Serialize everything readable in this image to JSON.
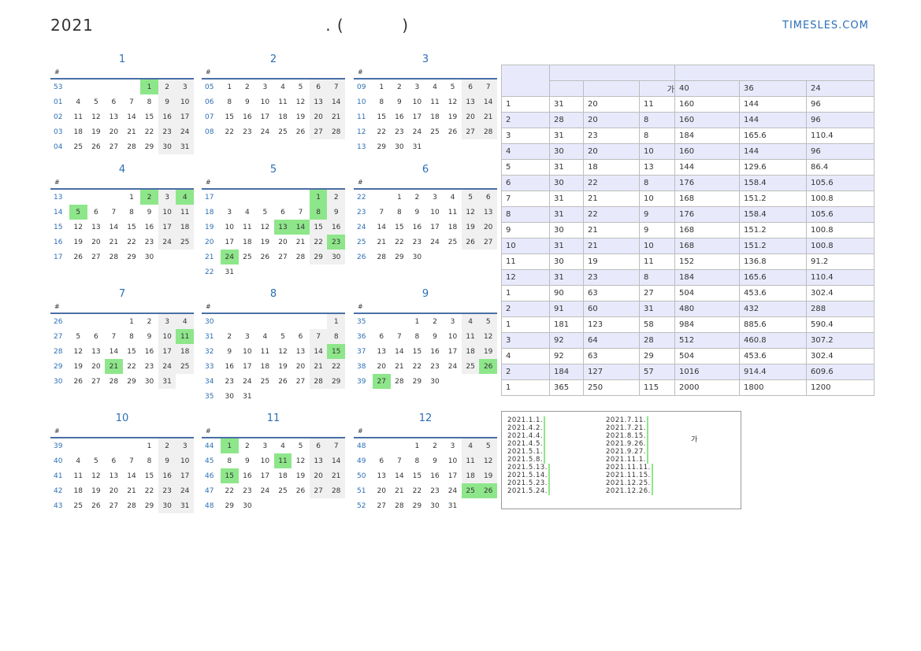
{
  "header": {
    "title": "2021                                        . (          )",
    "site": "TIMESLES.COM"
  },
  "months": [
    {
      "name": "1",
      "hash": "#",
      "rows": [
        {
          "wk": "53",
          "days": [
            "",
            "",
            "",
            "",
            "1",
            "2",
            "3"
          ],
          "hol": [
            4
          ]
        },
        {
          "wk": "01",
          "days": [
            "4",
            "5",
            "6",
            "7",
            "8",
            "9",
            "10"
          ],
          "hol": []
        },
        {
          "wk": "02",
          "days": [
            "11",
            "12",
            "13",
            "14",
            "15",
            "16",
            "17"
          ],
          "hol": []
        },
        {
          "wk": "03",
          "days": [
            "18",
            "19",
            "20",
            "21",
            "22",
            "23",
            "24"
          ],
          "hol": []
        },
        {
          "wk": "04",
          "days": [
            "25",
            "26",
            "27",
            "28",
            "29",
            "30",
            "31"
          ],
          "hol": []
        }
      ]
    },
    {
      "name": "2",
      "hash": "#",
      "rows": [
        {
          "wk": "05",
          "days": [
            "1",
            "2",
            "3",
            "4",
            "5",
            "6",
            "7"
          ],
          "hol": []
        },
        {
          "wk": "06",
          "days": [
            "8",
            "9",
            "10",
            "11",
            "12",
            "13",
            "14"
          ],
          "hol": []
        },
        {
          "wk": "07",
          "days": [
            "15",
            "16",
            "17",
            "18",
            "19",
            "20",
            "21"
          ],
          "hol": []
        },
        {
          "wk": "08",
          "days": [
            "22",
            "23",
            "24",
            "25",
            "26",
            "27",
            "28"
          ],
          "hol": []
        }
      ]
    },
    {
      "name": "3",
      "hash": "#",
      "rows": [
        {
          "wk": "09",
          "days": [
            "1",
            "2",
            "3",
            "4",
            "5",
            "6",
            "7"
          ],
          "hol": []
        },
        {
          "wk": "10",
          "days": [
            "8",
            "9",
            "10",
            "11",
            "12",
            "13",
            "14"
          ],
          "hol": []
        },
        {
          "wk": "11",
          "days": [
            "15",
            "16",
            "17",
            "18",
            "19",
            "20",
            "21"
          ],
          "hol": []
        },
        {
          "wk": "12",
          "days": [
            "22",
            "23",
            "24",
            "25",
            "26",
            "27",
            "28"
          ],
          "hol": []
        },
        {
          "wk": "13",
          "days": [
            "29",
            "30",
            "31",
            "",
            "",
            "",
            ""
          ],
          "hol": []
        }
      ]
    },
    {
      "name": "4",
      "hash": "#",
      "rows": [
        {
          "wk": "13",
          "days": [
            "",
            "",
            "",
            "1",
            "2",
            "3",
            "4"
          ],
          "hol": [
            4,
            6
          ]
        },
        {
          "wk": "14",
          "days": [
            "5",
            "6",
            "7",
            "8",
            "9",
            "10",
            "11"
          ],
          "hol": [
            0
          ]
        },
        {
          "wk": "15",
          "days": [
            "12",
            "13",
            "14",
            "15",
            "16",
            "17",
            "18"
          ],
          "hol": []
        },
        {
          "wk": "16",
          "days": [
            "19",
            "20",
            "21",
            "22",
            "23",
            "24",
            "25"
          ],
          "hol": []
        },
        {
          "wk": "17",
          "days": [
            "26",
            "27",
            "28",
            "29",
            "30",
            "",
            ""
          ],
          "hol": []
        }
      ]
    },
    {
      "name": "5",
      "hash": "#",
      "rows": [
        {
          "wk": "17",
          "days": [
            "",
            "",
            "",
            "",
            "",
            "1",
            "2"
          ],
          "hol": [
            5
          ]
        },
        {
          "wk": "18",
          "days": [
            "3",
            "4",
            "5",
            "6",
            "7",
            "8",
            "9"
          ],
          "hol": [
            5
          ]
        },
        {
          "wk": "19",
          "days": [
            "10",
            "11",
            "12",
            "13",
            "14",
            "15",
            "16"
          ],
          "hol": [
            3,
            4
          ]
        },
        {
          "wk": "20",
          "days": [
            "17",
            "18",
            "19",
            "20",
            "21",
            "22",
            "23"
          ],
          "hol": [
            6
          ]
        },
        {
          "wk": "21",
          "days": [
            "24",
            "25",
            "26",
            "27",
            "28",
            "29",
            "30"
          ],
          "hol": [
            0
          ]
        },
        {
          "wk": "22",
          "days": [
            "31",
            "",
            "",
            "",
            "",
            "",
            ""
          ],
          "hol": []
        }
      ]
    },
    {
      "name": "6",
      "hash": "#",
      "rows": [
        {
          "wk": "22",
          "days": [
            "",
            "1",
            "2",
            "3",
            "4",
            "5",
            "6"
          ],
          "hol": []
        },
        {
          "wk": "23",
          "days": [
            "7",
            "8",
            "9",
            "10",
            "11",
            "12",
            "13"
          ],
          "hol": []
        },
        {
          "wk": "24",
          "days": [
            "14",
            "15",
            "16",
            "17",
            "18",
            "19",
            "20"
          ],
          "hol": []
        },
        {
          "wk": "25",
          "days": [
            "21",
            "22",
            "23",
            "24",
            "25",
            "26",
            "27"
          ],
          "hol": []
        },
        {
          "wk": "26",
          "days": [
            "28",
            "29",
            "30",
            "",
            "",
            "",
            ""
          ],
          "hol": []
        }
      ]
    },
    {
      "name": "7",
      "hash": "#",
      "rows": [
        {
          "wk": "26",
          "days": [
            "",
            "",
            "",
            "1",
            "2",
            "3",
            "4"
          ],
          "hol": []
        },
        {
          "wk": "27",
          "days": [
            "5",
            "6",
            "7",
            "8",
            "9",
            "10",
            "11"
          ],
          "hol": [
            6
          ]
        },
        {
          "wk": "28",
          "days": [
            "12",
            "13",
            "14",
            "15",
            "16",
            "17",
            "18"
          ],
          "hol": []
        },
        {
          "wk": "29",
          "days": [
            "19",
            "20",
            "21",
            "22",
            "23",
            "24",
            "25"
          ],
          "hol": [
            2
          ]
        },
        {
          "wk": "30",
          "days": [
            "26",
            "27",
            "28",
            "29",
            "30",
            "31",
            ""
          ],
          "hol": []
        }
      ]
    },
    {
      "name": "8",
      "hash": "#",
      "rows": [
        {
          "wk": "30",
          "days": [
            "",
            "",
            "",
            "",
            "",
            "",
            "1"
          ],
          "hol": []
        },
        {
          "wk": "31",
          "days": [
            "2",
            "3",
            "4",
            "5",
            "6",
            "7",
            "8"
          ],
          "hol": []
        },
        {
          "wk": "32",
          "days": [
            "9",
            "10",
            "11",
            "12",
            "13",
            "14",
            "15"
          ],
          "hol": [
            6
          ]
        },
        {
          "wk": "33",
          "days": [
            "16",
            "17",
            "18",
            "19",
            "20",
            "21",
            "22"
          ],
          "hol": []
        },
        {
          "wk": "34",
          "days": [
            "23",
            "24",
            "25",
            "26",
            "27",
            "28",
            "29"
          ],
          "hol": []
        },
        {
          "wk": "35",
          "days": [
            "30",
            "31",
            "",
            "",
            "",
            "",
            ""
          ],
          "hol": []
        }
      ]
    },
    {
      "name": "9",
      "hash": "#",
      "rows": [
        {
          "wk": "35",
          "days": [
            "",
            "",
            "1",
            "2",
            "3",
            "4",
            "5"
          ],
          "hol": []
        },
        {
          "wk": "36",
          "days": [
            "6",
            "7",
            "8",
            "9",
            "10",
            "11",
            "12"
          ],
          "hol": []
        },
        {
          "wk": "37",
          "days": [
            "13",
            "14",
            "15",
            "16",
            "17",
            "18",
            "19"
          ],
          "hol": []
        },
        {
          "wk": "38",
          "days": [
            "20",
            "21",
            "22",
            "23",
            "24",
            "25",
            "26"
          ],
          "hol": [
            6
          ]
        },
        {
          "wk": "39",
          "days": [
            "27",
            "28",
            "29",
            "30",
            "",
            "",
            ""
          ],
          "hol": [
            0
          ]
        }
      ]
    },
    {
      "name": "10",
      "hash": "#",
      "rows": [
        {
          "wk": "39",
          "days": [
            "",
            "",
            "",
            "",
            "1",
            "2",
            "3"
          ],
          "hol": []
        },
        {
          "wk": "40",
          "days": [
            "4",
            "5",
            "6",
            "7",
            "8",
            "9",
            "10"
          ],
          "hol": []
        },
        {
          "wk": "41",
          "days": [
            "11",
            "12",
            "13",
            "14",
            "15",
            "16",
            "17"
          ],
          "hol": []
        },
        {
          "wk": "42",
          "days": [
            "18",
            "19",
            "20",
            "21",
            "22",
            "23",
            "24"
          ],
          "hol": []
        },
        {
          "wk": "43",
          "days": [
            "25",
            "26",
            "27",
            "28",
            "29",
            "30",
            "31"
          ],
          "hol": []
        }
      ]
    },
    {
      "name": "11",
      "hash": "#",
      "rows": [
        {
          "wk": "44",
          "days": [
            "1",
            "2",
            "3",
            "4",
            "5",
            "6",
            "7"
          ],
          "hol": [
            0
          ]
        },
        {
          "wk": "45",
          "days": [
            "8",
            "9",
            "10",
            "11",
            "12",
            "13",
            "14"
          ],
          "hol": [
            3
          ]
        },
        {
          "wk": "46",
          "days": [
            "15",
            "16",
            "17",
            "18",
            "19",
            "20",
            "21"
          ],
          "hol": [
            0
          ]
        },
        {
          "wk": "47",
          "days": [
            "22",
            "23",
            "24",
            "25",
            "26",
            "27",
            "28"
          ],
          "hol": []
        },
        {
          "wk": "48",
          "days": [
            "29",
            "30",
            "",
            "",
            "",
            "",
            ""
          ],
          "hol": []
        }
      ]
    },
    {
      "name": "12",
      "hash": "#",
      "rows": [
        {
          "wk": "48",
          "days": [
            "",
            "",
            "1",
            "2",
            "3",
            "4",
            "5"
          ],
          "hol": []
        },
        {
          "wk": "49",
          "days": [
            "6",
            "7",
            "8",
            "9",
            "10",
            "11",
            "12"
          ],
          "hol": []
        },
        {
          "wk": "50",
          "days": [
            "13",
            "14",
            "15",
            "16",
            "17",
            "18",
            "19"
          ],
          "hol": []
        },
        {
          "wk": "51",
          "days": [
            "20",
            "21",
            "22",
            "23",
            "24",
            "25",
            "26"
          ],
          "hol": [
            5,
            6
          ]
        },
        {
          "wk": "52",
          "days": [
            "27",
            "28",
            "29",
            "30",
            "31",
            "",
            ""
          ],
          "hol": []
        }
      ]
    }
  ],
  "summary": {
    "header_row2": [
      "",
      "",
      "가",
      "40",
      "36",
      "24"
    ],
    "rows": [
      [
        "1",
        "31",
        "20",
        "11",
        "160",
        "144",
        "96"
      ],
      [
        "2",
        "28",
        "20",
        "8",
        "160",
        "144",
        "96"
      ],
      [
        "3",
        "31",
        "23",
        "8",
        "184",
        "165.6",
        "110.4"
      ],
      [
        "4",
        "30",
        "20",
        "10",
        "160",
        "144",
        "96"
      ],
      [
        "5",
        "31",
        "18",
        "13",
        "144",
        "129.6",
        "86.4"
      ],
      [
        "6",
        "30",
        "22",
        "8",
        "176",
        "158.4",
        "105.6"
      ],
      [
        "7",
        "31",
        "21",
        "10",
        "168",
        "151.2",
        "100.8"
      ],
      [
        "8",
        "31",
        "22",
        "9",
        "176",
        "158.4",
        "105.6"
      ],
      [
        "9",
        "30",
        "21",
        "9",
        "168",
        "151.2",
        "100.8"
      ],
      [
        "10",
        "31",
        "21",
        "10",
        "168",
        "151.2",
        "100.8"
      ],
      [
        "11",
        "30",
        "19",
        "11",
        "152",
        "136.8",
        "91.2"
      ],
      [
        "12",
        "31",
        "23",
        "8",
        "184",
        "165.6",
        "110.4"
      ],
      [
        "1",
        "90",
        "63",
        "27",
        "504",
        "453.6",
        "302.4"
      ],
      [
        "2",
        "91",
        "60",
        "31",
        "480",
        "432",
        "288"
      ],
      [
        "1",
        "181",
        "123",
        "58",
        "984",
        "885.6",
        "590.4"
      ],
      [
        "3",
        "92",
        "64",
        "28",
        "512",
        "460.8",
        "307.2"
      ],
      [
        "4",
        "92",
        "63",
        "29",
        "504",
        "453.6",
        "302.4"
      ],
      [
        "2",
        "184",
        "127",
        "57",
        "1016",
        "914.4",
        "609.6"
      ],
      [
        "1",
        "365",
        "250",
        "115",
        "2000",
        "1800",
        "1200"
      ]
    ]
  },
  "holidays": {
    "col1": [
      "2021.1.1.",
      "2021.4.2.",
      "2021.4.4.",
      "2021.4.5.",
      "2021.5.1.",
      "2021.5.8.",
      "2021.5.13.",
      "2021.5.14.",
      "2021.5.23.",
      "2021.5.24."
    ],
    "col2": [
      "2021.7.11.",
      "2021.7.21.",
      "2021.8.15.",
      "2021.9.26.",
      "2021.9.27.",
      "2021.11.1.",
      "2021.11.11.",
      "2021.11.15.",
      "2021.12.25.",
      "2021.12.26."
    ],
    "note": "가"
  }
}
